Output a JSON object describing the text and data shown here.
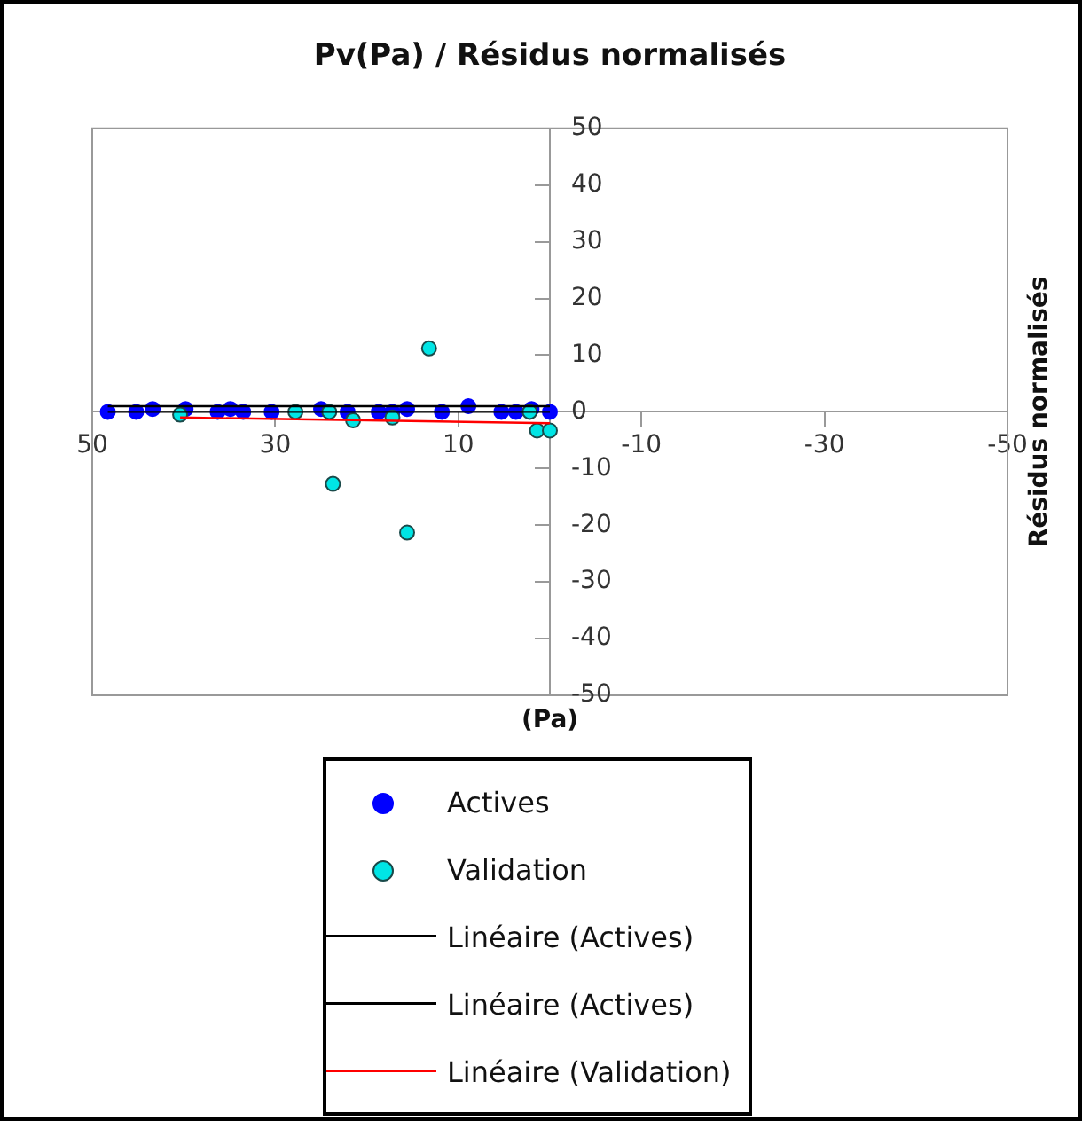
{
  "chart_data": {
    "type": "scatter",
    "title": "Pv(Pa) / Résidus normalisés",
    "xlabel": "(Pa)",
    "ylabel": "Résidus normalisés",
    "xlim": [
      50,
      -50
    ],
    "xticks": [
      50,
      30,
      10,
      -10,
      -30,
      -50
    ],
    "ylim": [
      -50,
      50
    ],
    "yticks": [
      -50,
      -40,
      -30,
      -20,
      -10,
      0,
      10,
      20,
      30,
      40,
      50
    ],
    "grid": false,
    "legend": "bottom",
    "series": [
      {
        "name": "Actives",
        "marker": "circle",
        "color": "#0000ff",
        "x": [
          48.3,
          45.2,
          43.4,
          39.8,
          36.3,
          34.9,
          33.5,
          30.4,
          25,
          22.1,
          18.7,
          17.2,
          15.6,
          11.8,
          8.9,
          5.3,
          3.7,
          2,
          0
        ],
        "values": [
          0,
          0,
          0.5,
          0.5,
          0,
          0.5,
          0,
          0,
          0.5,
          0,
          0,
          0,
          0.5,
          0,
          1,
          0,
          0,
          0.5,
          0
        ]
      },
      {
        "name": "Validation",
        "marker": "circle",
        "color": "#00e5e5",
        "x": [
          40.4,
          27.8,
          24.1,
          21.5,
          17.2,
          13.2,
          23.7,
          15.6,
          2.2,
          1.4,
          0
        ],
        "values": [
          -0.5,
          0,
          0,
          -1.5,
          -1,
          11.2,
          -12.7,
          -21.3,
          0,
          -3.3,
          -3.3
        ]
      },
      {
        "name": "Linéaire (Actives)",
        "type": "line",
        "marker": "none",
        "color": "#000000",
        "x": [
          48.3,
          0
        ],
        "values": [
          0,
          0
        ]
      },
      {
        "name": "Linéaire (Actives)",
        "type": "line",
        "marker": "none",
        "color": "#000000",
        "x": [
          48.3,
          0
        ],
        "values": [
          1,
          1
        ]
      },
      {
        "name": "Linéaire (Validation)",
        "type": "line",
        "marker": "none",
        "color": "#ff0000",
        "x": [
          40.4,
          0
        ],
        "values": [
          -1,
          -2
        ]
      }
    ]
  }
}
